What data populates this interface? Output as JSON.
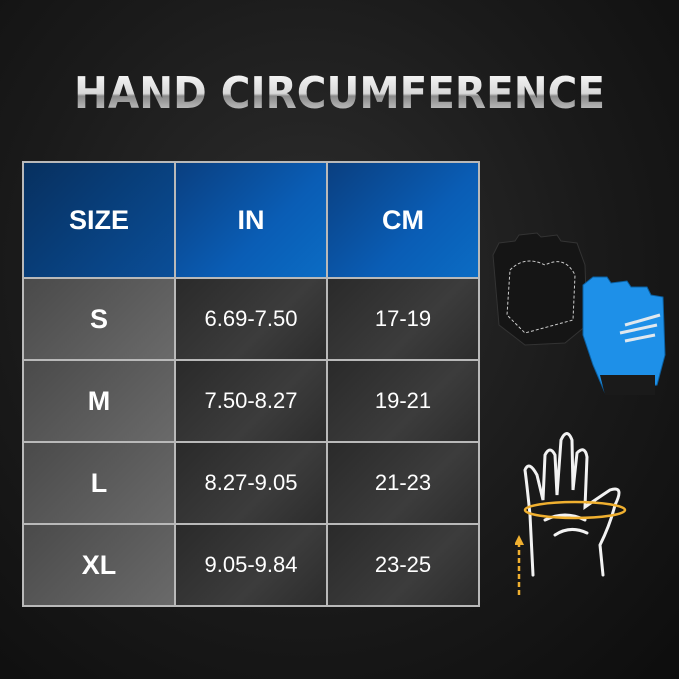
{
  "title": "HAND CIRCUMFERENCE",
  "table": {
    "headers": [
      "SIZE",
      "IN",
      "CM"
    ],
    "rows": [
      [
        "S",
        "6.69-7.50",
        "17-19"
      ],
      [
        "M",
        "7.50-8.27",
        "19-21"
      ],
      [
        "L",
        "8.27-9.05",
        "21-23"
      ],
      [
        "XL",
        "9.05-9.84",
        "23-25"
      ]
    ]
  },
  "colors": {
    "header_blue": "#0a5db5",
    "glove_blue": "#1e90e8",
    "arrow": "#f0b030"
  },
  "icons": [
    "glove-pair-image",
    "hand-measure-icon"
  ]
}
